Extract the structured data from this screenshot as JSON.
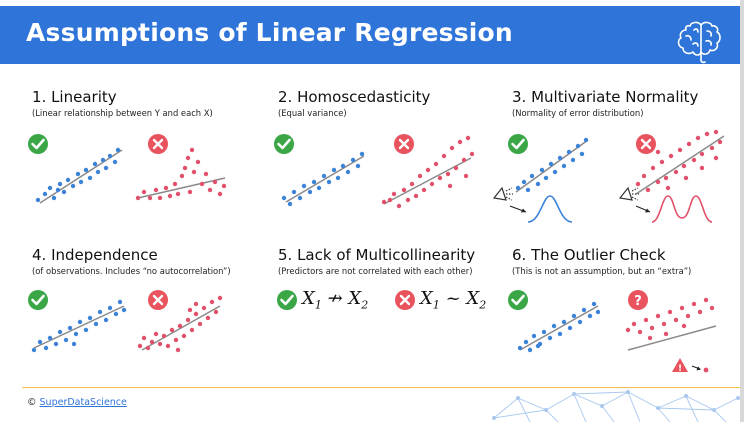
{
  "header": {
    "title": "Assumptions of Linear Regression",
    "logo_icon": "brain-icon"
  },
  "colors": {
    "header": "#2f74d9",
    "good": "#3aa646",
    "bad": "#e8535e",
    "blue_points": "#3b82d8",
    "red_points": "#e0506a",
    "line": "#8a8a8a",
    "footer_rule": "#f2c14e"
  },
  "panels": [
    {
      "title": "1. Linearity",
      "subtitle": "(Linear relationship between Y and each X)",
      "icons": [
        "check-icon",
        "cross-icon"
      ]
    },
    {
      "title": "2. Homoscedasticity",
      "subtitle": "(Equal variance)",
      "icons": [
        "check-icon",
        "cross-icon"
      ]
    },
    {
      "title": "3. Multivariate Normality",
      "subtitle": "(Normality of error distribution)",
      "icons": [
        "check-icon",
        "cross-icon"
      ]
    },
    {
      "title": "4. Independence",
      "subtitle": "(of observations. Includes “no autocorrelation”)",
      "icons": [
        "check-icon",
        "cross-icon"
      ]
    },
    {
      "title": "5. Lack of Multicollinearity",
      "subtitle": "(Predictors are not correlated with each other)",
      "icons": [
        "check-icon",
        "cross-icon"
      ]
    },
    {
      "title": "6. The Outlier Check",
      "subtitle": "(This is not an assumption, but an “extra”)",
      "icons": [
        "check-icon",
        "question-icon"
      ]
    }
  ],
  "formulas": {
    "good": {
      "x": "X",
      "x_sub": "1",
      "op": "↛",
      "y": "X",
      "y_sub": "2"
    },
    "bad": {
      "x": "X",
      "x_sub": "1",
      "op": "~",
      "y": "X",
      "y_sub": "2"
    }
  },
  "footer": {
    "copyright": "©",
    "brand": "SuperDataScience"
  }
}
